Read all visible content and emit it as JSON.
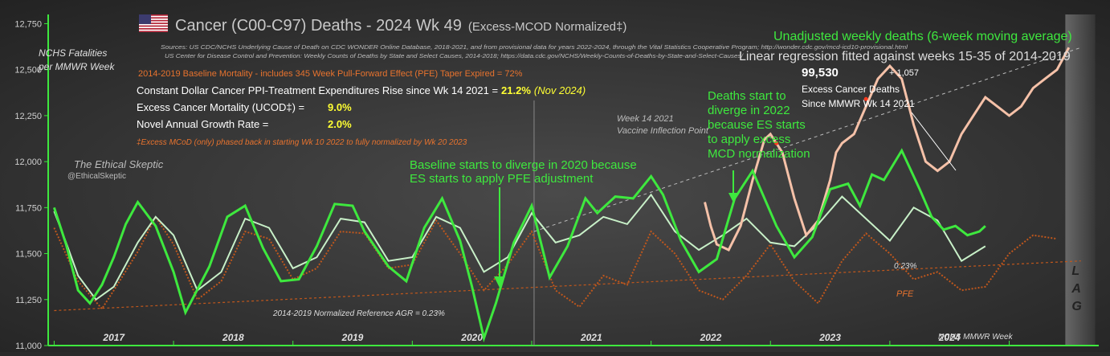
{
  "header": {
    "title": "Cancer (C00-C97) Deaths - 2024 Wk 49",
    "title_suffix": "(Excess-MCOD  Normalized‡)",
    "sources_1": "Sources:  US CDC/NCHS Underlying Cause of Death on CDC WONDER Online Database, 2018-2021, and from provisional data for years 2022-2024, through the Vital Statistics Cooperative Program; http://wonder.cdc.gov/mcd-icd10-provisional.html",
    "sources_2": "US Center for Disease Control and Prevention: Weekly Counts of Deaths by State and Select Causes, 2014-2018; https://data.cdc.gov/NCHS/Weekly-Counts-of-Deaths-by-State-and-Select-Causes/",
    "baseline_note": "2014-2019 Baseline Mortality - includes 345 Week Pull-Forward Effect (PFE) Taper Expired =  72%"
  },
  "stats": {
    "ppi_label": "Constant Dollar Cancer PPI-Treatment Expenditures Rise since Wk 14 2021  =",
    "ppi_value": "21.2%",
    "ppi_date": "(Nov 2024)",
    "excess_label": "Excess Cancer Mortality (UCOD‡) =",
    "excess_value": "9.0%",
    "growth_label": "Novel Annual  Growth Rate  =",
    "growth_value": "2.0%",
    "footnote": "‡Excess  MCoD (only) phased back in starting  Wk 10 2022 to fully normalized  by Wk 20 2023"
  },
  "branding": {
    "name": "The Ethical Skeptic",
    "handle": "@EthicalSkeptic"
  },
  "annotations": {
    "baseline_diverge": [
      "Baseline starts to diverge in 2020 because",
      "ES starts to apply PFE adjustment"
    ],
    "deaths_diverge": [
      "Deaths start to",
      "diverge in 2022",
      "because ES starts",
      "to apply excess",
      "MCD normalization"
    ],
    "vaccine": [
      "Week 14 2021",
      "Vaccine Inflection Point"
    ],
    "unadjusted": "Unadjusted weekly deaths (6-week moving average)",
    "regression": "Linear regression fitted against weeks 15-35 of 2014-2019",
    "excess_total": "99,530",
    "excess_plus": "+  1,057",
    "excess_caption": [
      "Excess Cancer Deaths",
      "Since MMWR Wk 14 2021"
    ],
    "agr_ref": "2014-2019 Normalized Reference AGR = 0.23%",
    "agr_small": "0.23%",
    "pfe": "PFE",
    "lag": [
      "L",
      "A",
      "G"
    ],
    "week_label": "NCHS MMWR Week"
  },
  "colors": {
    "background": "#2a2a2a",
    "actual": "#3ee83e",
    "baseline": "#c8f0c8",
    "unadjusted": "#f5c1a8",
    "pfe": "#c0571c",
    "regression": "#bbbbbb",
    "title": "#c8c8c8",
    "highlight": "#ffff33",
    "orange_text": "#e8732e"
  },
  "chart_data": {
    "type": "line",
    "ylabel": [
      "NCHS Fatalities",
      "per MMWR Week"
    ],
    "ylim": [
      11000,
      12800
    ],
    "yticks": [
      11000,
      11250,
      11500,
      11750,
      12000,
      12250,
      12500,
      12750
    ],
    "ytick_labels": [
      "11,000",
      "11,250",
      "11,500",
      "11,750",
      "12,000",
      "12,250",
      "12,500",
      "12,750"
    ],
    "xlim": [
      2016.45,
      2025.25
    ],
    "year_labels": [
      {
        "label": "2017",
        "x": 2017.0
      },
      {
        "label": "2018",
        "x": 2018.0
      },
      {
        "label": "2019",
        "x": 2019.0
      },
      {
        "label": "2020",
        "x": 2020.0
      },
      {
        "label": "2021",
        "x": 2021.0
      },
      {
        "label": "2022",
        "x": 2022.0
      },
      {
        "label": "2023",
        "x": 2023.0
      },
      {
        "label": "2024",
        "x": 2024.0
      }
    ],
    "vaccine_line_x": 2020.52,
    "lag_band": [
      2024.97,
      2025.22
    ],
    "series": [
      {
        "key": "actual",
        "x": [
          2016.5,
          2016.6,
          2016.7,
          2016.8,
          2016.9,
          2017.0,
          2017.1,
          2017.2,
          2017.35,
          2017.5,
          2017.6,
          2017.8,
          2017.95,
          2018.1,
          2018.25,
          2018.4,
          2018.55,
          2018.7,
          2018.85,
          2019.0,
          2019.1,
          2019.3,
          2019.45,
          2019.6,
          2019.75,
          2019.9,
          2020.0,
          2020.1,
          2020.2,
          2020.35,
          2020.5,
          2020.65,
          2020.8,
          2020.95,
          2021.05,
          2021.2,
          2021.35,
          2021.5,
          2021.6,
          2021.75,
          2021.9,
          2022.05,
          2022.2,
          2022.35,
          2022.55,
          2022.7,
          2022.85,
          2023.0,
          2023.15,
          2023.25,
          2023.35,
          2023.45,
          2023.6,
          2023.75,
          2023.85,
          2023.95,
          2024.05,
          2024.15,
          2024.25,
          2024.3
        ],
        "y": [
          11750,
          11550,
          11300,
          11230,
          11330,
          11480,
          11660,
          11780,
          11650,
          11400,
          11180,
          11430,
          11700,
          11760,
          11530,
          11350,
          11360,
          11540,
          11770,
          11760,
          11620,
          11430,
          11350,
          11640,
          11800,
          11570,
          11320,
          11040,
          11230,
          11560,
          11760,
          11370,
          11540,
          11800,
          11720,
          11810,
          11800,
          11920,
          11820,
          11570,
          11400,
          11470,
          11800,
          11950,
          11650,
          11480,
          11590,
          11850,
          11880,
          11760,
          11930,
          11900,
          12060,
          11850,
          11700,
          11630,
          11650,
          11600,
          11620,
          11650
        ]
      },
      {
        "key": "baseline",
        "x": [
          2016.5,
          2016.6,
          2016.7,
          2016.85,
          2017.0,
          2017.2,
          2017.35,
          2017.5,
          2017.7,
          2017.9,
          2018.1,
          2018.3,
          2018.5,
          2018.7,
          2018.9,
          2019.1,
          2019.3,
          2019.5,
          2019.7,
          2019.9,
          2020.1,
          2020.3,
          2020.5,
          2020.7,
          2020.9,
          2021.1,
          2021.3,
          2021.5,
          2021.7,
          2021.9,
          2022.1,
          2022.3,
          2022.5,
          2022.7,
          2022.9,
          2023.1,
          2023.3,
          2023.5,
          2023.7,
          2023.9,
          2024.1,
          2024.3
        ],
        "y": [
          11730,
          11560,
          11380,
          11250,
          11320,
          11560,
          11700,
          11600,
          11300,
          11400,
          11690,
          11640,
          11420,
          11480,
          11690,
          11670,
          11460,
          11480,
          11700,
          11640,
          11400,
          11480,
          11720,
          11560,
          11600,
          11700,
          11660,
          11820,
          11620,
          11520,
          11600,
          11690,
          11560,
          11540,
          11660,
          11810,
          11690,
          11570,
          11750,
          11680,
          11460,
          11540
        ]
      },
      {
        "key": "unadjusted",
        "x": [
          2021.95,
          2022.0,
          2022.05,
          2022.15,
          2022.25,
          2022.35,
          2022.45,
          2022.5,
          2022.6,
          2022.7,
          2022.8,
          2022.9,
          2023.0,
          2023.05,
          2023.1,
          2023.2,
          2023.3,
          2023.4,
          2023.5,
          2023.6,
          2023.7,
          2023.8,
          2023.9,
          2024.0,
          2024.1,
          2024.2,
          2024.3,
          2024.4,
          2024.5,
          2024.6,
          2024.7,
          2024.8,
          2024.9,
          2025.0
        ],
        "y": [
          11780,
          11650,
          11550,
          11520,
          11650,
          11900,
          12120,
          12150,
          12050,
          11800,
          11600,
          11680,
          11900,
          12050,
          12100,
          12150,
          12300,
          12450,
          12520,
          12450,
          12200,
          12000,
          11950,
          12000,
          12150,
          12250,
          12350,
          12300,
          12250,
          12300,
          12400,
          12450,
          12500,
          12620
        ]
      },
      {
        "key": "pfe",
        "x": [
          2016.5,
          2016.7,
          2016.9,
          2017.0,
          2017.2,
          2017.35,
          2017.5,
          2017.7,
          2017.9,
          2018.1,
          2018.3,
          2018.5,
          2018.7,
          2018.9,
          2019.1,
          2019.3,
          2019.5,
          2019.7,
          2019.9,
          2020.1,
          2020.3,
          2020.5,
          2020.7,
          2020.9,
          2021.1,
          2021.3,
          2021.5,
          2021.7,
          2021.9,
          2022.1,
          2022.3,
          2022.5,
          2022.7,
          2022.9,
          2023.1,
          2023.3,
          2023.5,
          2023.7,
          2023.9,
          2024.1,
          2024.3,
          2024.5,
          2024.7,
          2024.9
        ],
        "y": [
          11640,
          11350,
          11200,
          11300,
          11510,
          11700,
          11550,
          11250,
          11350,
          11620,
          11580,
          11360,
          11420,
          11620,
          11610,
          11420,
          11440,
          11680,
          11500,
          11300,
          11440,
          11620,
          11300,
          11210,
          11380,
          11330,
          11620,
          11500,
          11300,
          11250,
          11380,
          11550,
          11350,
          11230,
          11460,
          11610,
          11500,
          11360,
          11400,
          11300,
          11320,
          11500,
          11600,
          11580
        ]
      },
      {
        "key": "regression_full",
        "x": [
          2016.5,
          2025.1
        ],
        "y": [
          11190,
          11460
        ]
      },
      {
        "key": "regression_excess",
        "x": [
          2020.52,
          2025.1
        ],
        "y": [
          11620,
          12620
        ]
      }
    ]
  }
}
